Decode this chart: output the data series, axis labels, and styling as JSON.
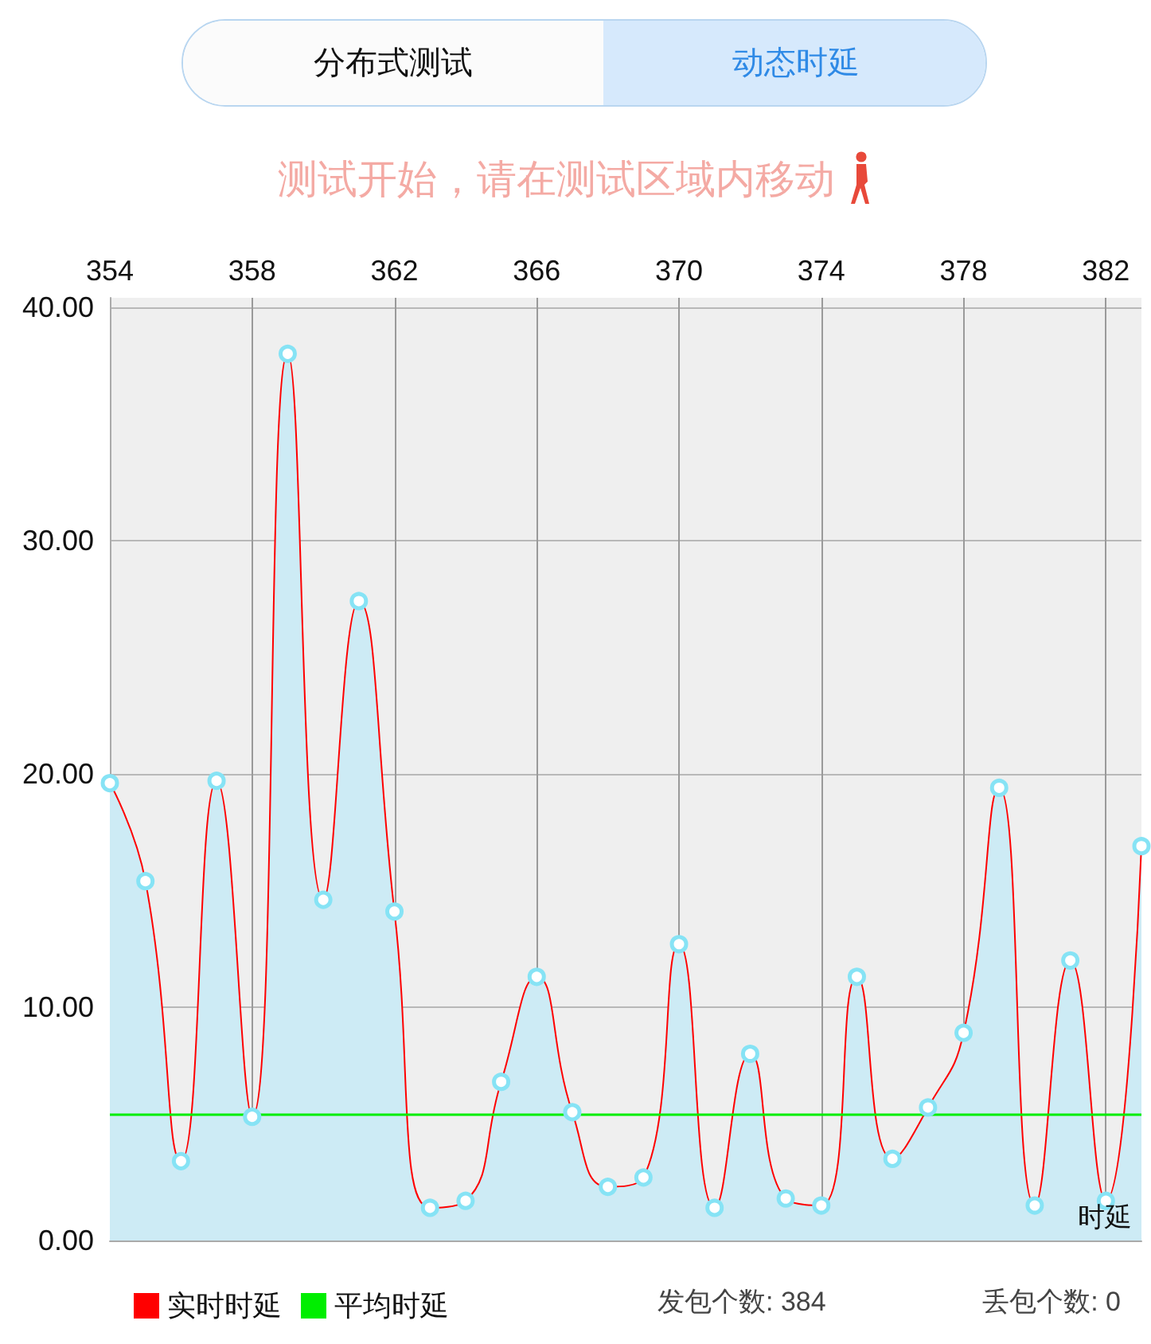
{
  "chart_data": {
    "type": "area",
    "title": "测试开始，请在测试区域内移动",
    "ylabel": "时延",
    "annotations": [
      "分布式测试",
      "动态时延",
      "发包个数: 384",
      "丢包个数: 0"
    ],
    "x": [
      354,
      355,
      356,
      357,
      358,
      359,
      360,
      361,
      362,
      363,
      364,
      365,
      366,
      367,
      368,
      369,
      370,
      371,
      372,
      373,
      374,
      375,
      376,
      377,
      378,
      379,
      380,
      381,
      382,
      383
    ],
    "series": [
      {
        "name": "实时时延",
        "color": "#ff0000",
        "values": [
          19.6,
          15.4,
          3.4,
          19.7,
          5.3,
          38.0,
          14.6,
          27.4,
          14.1,
          1.4,
          1.7,
          6.8,
          11.3,
          5.5,
          2.3,
          2.7,
          12.7,
          1.4,
          8.0,
          1.8,
          1.5,
          11.3,
          3.5,
          5.7,
          8.9,
          19.4,
          1.5,
          12.0,
          1.7,
          16.9
        ]
      }
    ],
    "ref_lines": [
      {
        "axis": "y",
        "value": 5.4,
        "label": "平均时延",
        "color": "#00ee00",
        "line_style": "solid"
      }
    ],
    "xlim": [
      354,
      383
    ],
    "xticks": [
      354,
      358,
      362,
      366,
      370,
      374,
      378,
      382
    ],
    "ylim": [
      0,
      40.4
    ],
    "yticks": [
      {
        "value": 0,
        "label": "0.00"
      },
      {
        "value": 10,
        "label": "10.00"
      },
      {
        "value": 20,
        "label": "20.00"
      },
      {
        "value": 30,
        "label": "30.00"
      },
      {
        "value": 40,
        "label": "40.00"
      }
    ],
    "grid": true,
    "legend": "bottom left",
    "marker": "circle",
    "line_style": "solid"
  }
}
